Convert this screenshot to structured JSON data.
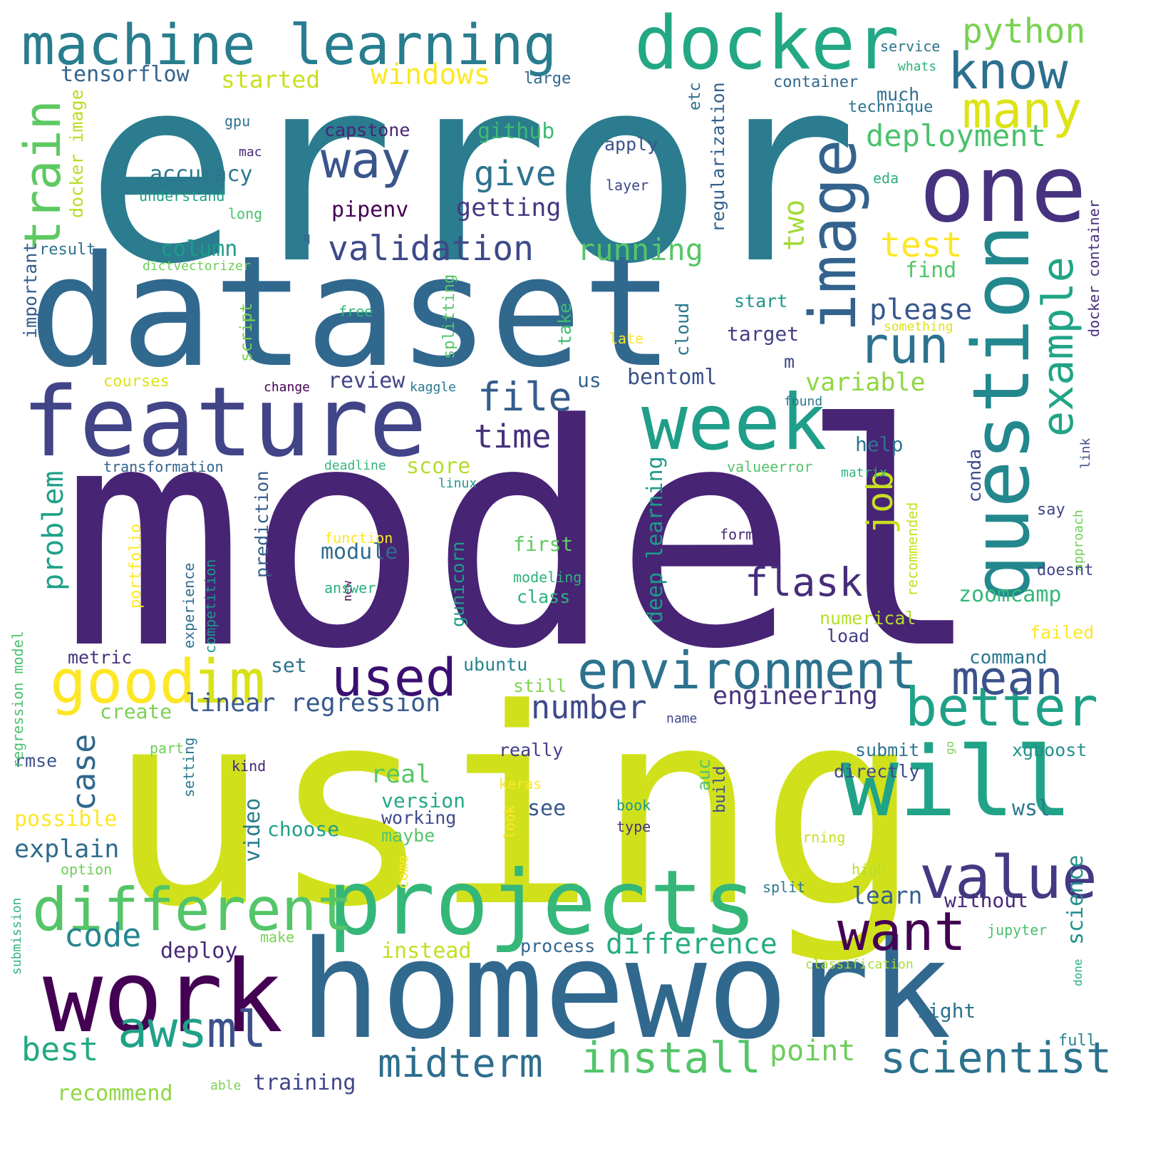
{
  "words": [
    {
      "text": "error",
      "color": "#2a7c8e",
      "vertical": false
    },
    {
      "text": "dataset",
      "color": "#31688e",
      "vertical": false
    },
    {
      "text": "model",
      "color": "#482475",
      "vertical": false
    },
    {
      "text": "using",
      "color": "#d0e11c",
      "vertical": false
    },
    {
      "text": "homework",
      "color": "#31688e",
      "vertical": false
    },
    {
      "text": "feature",
      "color": "#414487",
      "vertical": false
    },
    {
      "text": "machine learning",
      "color": "#287d8e",
      "vertical": false
    },
    {
      "text": "docker",
      "color": "#22a884",
      "vertical": false
    },
    {
      "text": "one",
      "color": "#46327e",
      "vertical": false
    },
    {
      "text": "image",
      "color": "#33638d",
      "vertical": true
    },
    {
      "text": "question",
      "color": "#23888e",
      "vertical": true
    },
    {
      "text": "week",
      "color": "#1f9e89",
      "vertical": false
    },
    {
      "text": "will",
      "color": "#20a386",
      "vertical": false
    },
    {
      "text": "projects",
      "color": "#35b779",
      "vertical": false
    },
    {
      "text": "work",
      "color": "#440154",
      "vertical": false
    },
    {
      "text": "different",
      "color": "#54c568",
      "vertical": false
    },
    {
      "text": "environment",
      "color": "#2c728e",
      "vertical": false
    },
    {
      "text": "good",
      "color": "#fde725",
      "vertical": false
    },
    {
      "text": "im",
      "color": "#d8e219",
      "vertical": false
    },
    {
      "text": "used",
      "color": "#3b0f70",
      "vertical": false
    },
    {
      "text": "value",
      "color": "#443983",
      "vertical": false
    },
    {
      "text": "want",
      "color": "#440154",
      "vertical": false
    },
    {
      "text": "aws",
      "color": "#1fa187",
      "vertical": false
    },
    {
      "text": "ml",
      "color": "#3b518b",
      "vertical": false
    },
    {
      "text": "better",
      "color": "#1fa187",
      "vertical": false
    },
    {
      "text": "mean",
      "color": "#3b528b",
      "vertical": false
    },
    {
      "text": "run",
      "color": "#2c728e",
      "vertical": false
    },
    {
      "text": "way",
      "color": "#39568c",
      "vertical": false
    },
    {
      "text": "know",
      "color": "#2d708e",
      "vertical": false
    },
    {
      "text": "many",
      "color": "#dde318",
      "vertical": false
    },
    {
      "text": "python",
      "color": "#7ad151",
      "vertical": false
    },
    {
      "text": "train",
      "color": "#5ec962",
      "vertical": true
    },
    {
      "text": "job",
      "color": "#c8e020",
      "vertical": true
    },
    {
      "text": "example",
      "color": "#20a486",
      "vertical": true
    },
    {
      "text": "validation",
      "color": "#3e4989",
      "vertical": false
    },
    {
      "text": "flask",
      "color": "#472d7b",
      "vertical": false
    },
    {
      "text": "file",
      "color": "#365c8d",
      "vertical": false
    },
    {
      "text": "install",
      "color": "#52c569",
      "vertical": false
    },
    {
      "text": "midterm",
      "color": "#2e6e8e",
      "vertical": false
    },
    {
      "text": "scientist",
      "color": "#2c728e",
      "vertical": false
    },
    {
      "text": "code",
      "color": "#25858e",
      "vertical": false
    },
    {
      "text": "deploy",
      "color": "#482878",
      "vertical": false
    },
    {
      "text": "difference",
      "color": "#27ad81",
      "vertical": false
    },
    {
      "text": "best",
      "color": "#23a983",
      "vertical": false
    },
    {
      "text": "point",
      "color": "#6ccd5a",
      "vertical": false
    },
    {
      "text": "number",
      "color": "#3e4a89",
      "vertical": false
    },
    {
      "text": "engineering",
      "color": "#46337e",
      "vertical": false
    },
    {
      "text": "linear regression",
      "color": "#38598c",
      "vertical": false
    },
    {
      "text": "case",
      "color": "#31688e",
      "vertical": true
    },
    {
      "text": "problem",
      "color": "#1fa088",
      "vertical": true
    },
    {
      "text": "test",
      "color": "#fde725",
      "vertical": false
    },
    {
      "text": "time",
      "color": "#46307e",
      "vertical": false
    },
    {
      "text": "give",
      "color": "#2c728e",
      "vertical": false
    },
    {
      "text": "deployment",
      "color": "#4ac16d",
      "vertical": false
    },
    {
      "text": "two",
      "color": "#a2da37",
      "vertical": true
    },
    {
      "text": "please",
      "color": "#38588c",
      "vertical": false
    },
    {
      "text": "windows",
      "color": "#fde725",
      "vertical": false
    },
    {
      "text": "tensorflow",
      "color": "#33628d",
      "vertical": false
    },
    {
      "text": "started",
      "color": "#c8e020",
      "vertical": false
    },
    {
      "text": "accuracy",
      "color": "#2a768e",
      "vertical": false
    },
    {
      "text": "github",
      "color": "#3dbc74",
      "vertical": false
    },
    {
      "text": "getting",
      "color": "#453781",
      "vertical": false
    },
    {
      "text": "pipenv",
      "color": "#440154",
      "vertical": false
    },
    {
      "text": "running",
      "color": "#56c667",
      "vertical": false
    },
    {
      "text": "column",
      "color": "#1e9c89",
      "vertical": false
    },
    {
      "text": "capstone",
      "color": "#482475",
      "vertical": false
    },
    {
      "text": "variable",
      "color": "#8fd744",
      "vertical": false
    },
    {
      "text": "bentoml",
      "color": "#3b528b",
      "vertical": false
    },
    {
      "text": "review",
      "color": "#414487",
      "vertical": false
    },
    {
      "text": "us",
      "color": "#33638d",
      "vertical": false
    },
    {
      "text": "m",
      "color": "#3f4788",
      "vertical": false
    },
    {
      "text": "find",
      "color": "#52c569",
      "vertical": false
    },
    {
      "text": "start",
      "color": "#1f958b",
      "vertical": false
    },
    {
      "text": "target",
      "color": "#433e85",
      "vertical": false
    },
    {
      "text": "help",
      "color": "#2a788e",
      "vertical": false
    },
    {
      "text": "score",
      "color": "#b5de2b",
      "vertical": false
    },
    {
      "text": "module",
      "color": "#2f6c8e",
      "vertical": false
    },
    {
      "text": "first",
      "color": "#5ec962",
      "vertical": false
    },
    {
      "text": "class",
      "color": "#2db27d",
      "vertical": false
    },
    {
      "text": "zoomcamp",
      "color": "#35b779",
      "vertical": false
    },
    {
      "text": "set",
      "color": "#2c718e",
      "vertical": false
    },
    {
      "text": "metric",
      "color": "#46337e",
      "vertical": false
    },
    {
      "text": "create",
      "color": "#7ad151",
      "vertical": false
    },
    {
      "text": "ubuntu",
      "color": "#25838e",
      "vertical": false
    },
    {
      "text": "still",
      "color": "#7fd34e",
      "vertical": false
    },
    {
      "text": "command",
      "color": "#2a788e",
      "vertical": false
    },
    {
      "text": "real",
      "color": "#56c667",
      "vertical": false
    },
    {
      "text": "version",
      "color": "#22a884",
      "vertical": false
    },
    {
      "text": "working",
      "color": "#3e4c8a",
      "vertical": false
    },
    {
      "text": "choose",
      "color": "#1fa088",
      "vertical": false
    },
    {
      "text": "see",
      "color": "#38588c",
      "vertical": false
    },
    {
      "text": "maybe",
      "color": "#54c568",
      "vertical": false
    },
    {
      "text": "wsl",
      "color": "#2a788e",
      "vertical": false
    },
    {
      "text": "explain",
      "color": "#2f6b8e",
      "vertical": false
    },
    {
      "text": "possible",
      "color": "#fde725",
      "vertical": false
    },
    {
      "text": "rmse",
      "color": "#3b528b",
      "vertical": false
    },
    {
      "text": "really",
      "color": "#433e85",
      "vertical": false
    },
    {
      "text": "submit",
      "color": "#2c738e",
      "vertical": false
    },
    {
      "text": "directly",
      "color": "#3e4a89",
      "vertical": false
    },
    {
      "text": "xgboost",
      "color": "#21918c",
      "vertical": false
    },
    {
      "text": "learn",
      "color": "#355f8d",
      "vertical": false
    },
    {
      "text": "without",
      "color": "#482878",
      "vertical": false
    },
    {
      "text": "instead",
      "color": "#c2df23",
      "vertical": false
    },
    {
      "text": "process",
      "color": "#32658e",
      "vertical": false
    },
    {
      "text": "training",
      "color": "#404588",
      "vertical": false
    },
    {
      "text": "recommend",
      "color": "#8fd744",
      "vertical": false
    },
    {
      "text": "right",
      "color": "#2c718e",
      "vertical": false
    },
    {
      "text": "full",
      "color": "#26828e",
      "vertical": false
    },
    {
      "text": "video",
      "color": "#287c8e",
      "vertical": true
    },
    {
      "text": "science",
      "color": "#21918c",
      "vertical": true
    },
    {
      "text": "deep learning",
      "color": "#1f9a8a",
      "vertical": true
    },
    {
      "text": "gunicorn",
      "color": "#1f9e89",
      "vertical": true
    },
    {
      "text": "prediction",
      "color": "#365d8d",
      "vertical": true
    },
    {
      "text": "conda",
      "color": "#3e4989",
      "vertical": true
    },
    {
      "text": "important",
      "color": "#365d8d",
      "vertical": true
    },
    {
      "text": "regularization",
      "color": "#34618d",
      "vertical": true
    },
    {
      "text": "docker image",
      "color": "#b8de29",
      "vertical": true
    },
    {
      "text": "docker container",
      "color": "#472d7b",
      "vertical": true
    },
    {
      "text": "etc",
      "color": "#2f6c8e",
      "vertical": true
    },
    {
      "text": "cloud",
      "color": "#2a788e",
      "vertical": true
    },
    {
      "text": "take",
      "color": "#3fbc73",
      "vertical": true
    },
    {
      "text": "script",
      "color": "#7ad151",
      "vertical": true
    },
    {
      "text": "splitting",
      "color": "#54c568",
      "vertical": true
    },
    {
      "text": "portfolio",
      "color": "#fde725",
      "vertical": true
    },
    {
      "text": "experience",
      "color": "#2f6c8e",
      "vertical": true
    },
    {
      "text": "competition",
      "color": "#1f958b",
      "vertical": true
    },
    {
      "text": "regression model",
      "color": "#4ac16d",
      "vertical": true
    },
    {
      "text": "submission",
      "color": "#31b57b",
      "vertical": true
    },
    {
      "text": "recommended",
      "color": "#c8e020",
      "vertical": true
    },
    {
      "text": "approach",
      "color": "#6ece58",
      "vertical": true
    },
    {
      "text": "link",
      "color": "#3e4c8a",
      "vertical": true
    },
    {
      "text": "done",
      "color": "#29af7f",
      "vertical": true
    },
    {
      "text": "setting",
      "color": "#2a788e",
      "vertical": true
    },
    {
      "text": "look",
      "color": "#fde725",
      "vertical": true
    },
    {
      "text": "come",
      "color": "#fde725",
      "vertical": true
    },
    {
      "text": "auc",
      "color": "#52c569",
      "vertical": true
    },
    {
      "text": "build",
      "color": "#3e4c8a",
      "vertical": true
    },
    {
      "text": "new",
      "color": "#440154",
      "vertical": true
    },
    {
      "text": "go",
      "color": "#7ad151",
      "vertical": true
    },
    {
      "text": "service",
      "color": "#2c728e",
      "vertical": false
    },
    {
      "text": "whats",
      "color": "#2db27d",
      "vertical": false
    },
    {
      "text": "large",
      "color": "#31688e",
      "vertical": false
    },
    {
      "text": "container",
      "color": "#31688e",
      "vertical": false
    },
    {
      "text": "much",
      "color": "#2f6c8e",
      "vertical": false
    },
    {
      "text": "technique",
      "color": "#2c728e",
      "vertical": false
    },
    {
      "text": "gpu",
      "color": "#2c728e",
      "vertical": false
    },
    {
      "text": "mac",
      "color": "#482878",
      "vertical": false
    },
    {
      "text": "apply",
      "color": "#3b528b",
      "vertical": false
    },
    {
      "text": "layer",
      "color": "#3e4989",
      "vertical": false
    },
    {
      "text": "eda",
      "color": "#2db27d",
      "vertical": false
    },
    {
      "text": "understand",
      "color": "#1f9e89",
      "vertical": false
    },
    {
      "text": "long",
      "color": "#4ac16d",
      "vertical": false
    },
    {
      "text": "q",
      "color": "#33638d",
      "vertical": false
    },
    {
      "text": "result",
      "color": "#2c728e",
      "vertical": false
    },
    {
      "text": "dictvectorizer",
      "color": "#6ece58",
      "vertical": false
    },
    {
      "text": "free",
      "color": "#35b779",
      "vertical": false
    },
    {
      "text": "something",
      "color": "#dde318",
      "vertical": false
    },
    {
      "text": "late",
      "color": "#fde725",
      "vertical": false
    },
    {
      "text": "courses",
      "color": "#dde318",
      "vertical": false
    },
    {
      "text": "change",
      "color": "#440154",
      "vertical": false
    },
    {
      "text": "kaggle",
      "color": "#2a788e",
      "vertical": false
    },
    {
      "text": "found",
      "color": "#2a788e",
      "vertical": false
    },
    {
      "text": "transformation",
      "color": "#33638d",
      "vertical": false
    },
    {
      "text": "deadline",
      "color": "#35b779",
      "vertical": false
    },
    {
      "text": "linux",
      "color": "#1f968b",
      "vertical": false
    },
    {
      "text": "valueerror",
      "color": "#52c569",
      "vertical": false
    },
    {
      "text": "matrix",
      "color": "#32b67a",
      "vertical": false
    },
    {
      "text": "say",
      "color": "#404588",
      "vertical": false
    },
    {
      "text": "function",
      "color": "#fde725",
      "vertical": false
    },
    {
      "text": "format",
      "color": "#482475",
      "vertical": false
    },
    {
      "text": "modeling",
      "color": "#2db27d",
      "vertical": false
    },
    {
      "text": "answer",
      "color": "#29af7f",
      "vertical": false
    },
    {
      "text": "doesnt",
      "color": "#404588",
      "vertical": false
    },
    {
      "text": "numerical",
      "color": "#b5de2b",
      "vertical": false
    },
    {
      "text": "load",
      "color": "#433e85",
      "vertical": false
    },
    {
      "text": "failed",
      "color": "#fde725",
      "vertical": false
    },
    {
      "text": "name",
      "color": "#404588",
      "vertical": false
    },
    {
      "text": "part",
      "color": "#6ece58",
      "vertical": false
    },
    {
      "text": "kind",
      "color": "#482475",
      "vertical": false
    },
    {
      "text": "keras",
      "color": "#fde725",
      "vertical": false
    },
    {
      "text": "book",
      "color": "#1f968b",
      "vertical": false
    },
    {
      "text": "type",
      "color": "#46327e",
      "vertical": false
    },
    {
      "text": "learning",
      "color": "#c8e020",
      "vertical": false
    },
    {
      "text": "option",
      "color": "#6ece58",
      "vertical": false
    },
    {
      "text": "high",
      "color": "#b5de2b",
      "vertical": false
    },
    {
      "text": "split",
      "color": "#2a788e",
      "vertical": false
    },
    {
      "text": "jupyter",
      "color": "#4ac16d",
      "vertical": false
    },
    {
      "text": "make",
      "color": "#7ad151",
      "vertical": false
    },
    {
      "text": "classification",
      "color": "#a8db34",
      "vertical": false
    },
    {
      "text": "able",
      "color": "#7ad151",
      "vertical": false
    }
  ]
}
